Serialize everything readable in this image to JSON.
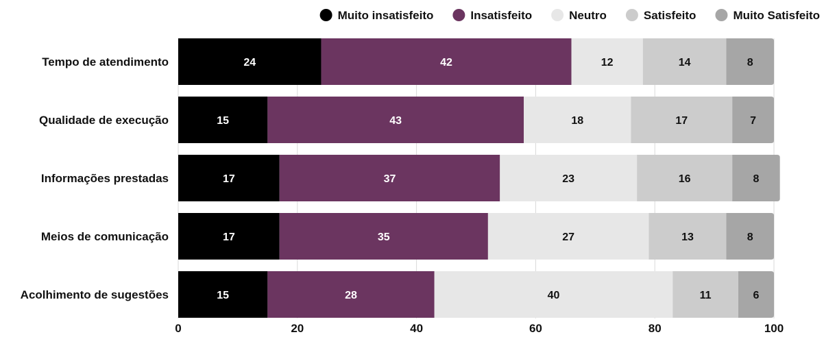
{
  "chart_data": {
    "type": "bar",
    "orientation": "horizontal",
    "stacked": true,
    "categories": [
      "Tempo de atendimento",
      "Qualidade de execução",
      "Informações prestadas",
      "Meios de comunicação",
      "Acolhimento de sugestões"
    ],
    "series": [
      {
        "name": "Muito insatisfeito",
        "color": "#000000",
        "label_color": "#ffffff",
        "values": [
          24,
          15,
          17,
          17,
          15
        ]
      },
      {
        "name": "Insatisfeito",
        "color": "#6b3560",
        "label_color": "#ffffff",
        "values": [
          42,
          43,
          37,
          35,
          28
        ]
      },
      {
        "name": "Neutro",
        "color": "#e7e7e7",
        "label_color": "#111111",
        "values": [
          12,
          18,
          23,
          27,
          40
        ]
      },
      {
        "name": "Satisfeito",
        "color": "#cccccc",
        "label_color": "#111111",
        "values": [
          14,
          17,
          16,
          13,
          11
        ]
      },
      {
        "name": "Muito Satisfeito",
        "color": "#a6a6a6",
        "label_color": "#111111",
        "values": [
          8,
          7,
          8,
          8,
          6
        ]
      }
    ],
    "xlim": [
      0,
      100
    ],
    "xticks": [
      "0",
      "20",
      "40",
      "60",
      "80",
      "100"
    ],
    "grid": true,
    "legend_position": "top-right"
  }
}
